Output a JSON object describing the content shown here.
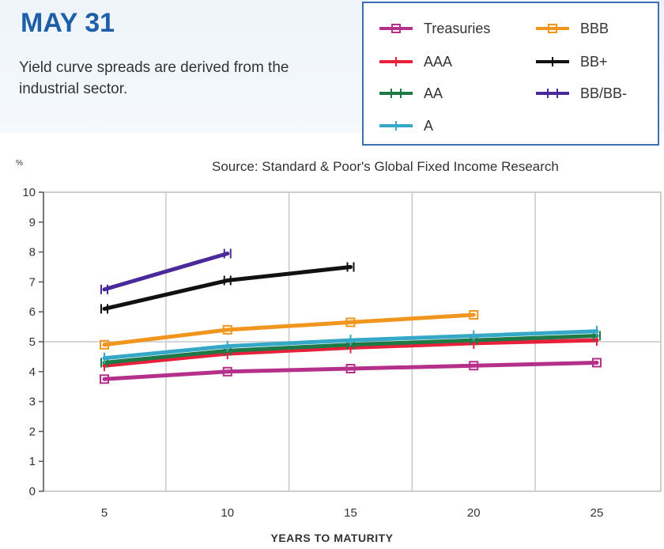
{
  "header": {
    "title": "MAY 31",
    "subtitle": "Yield curve spreads are derived from the industrial sector.",
    "source": "Source: Standard & Poor's Global Fixed Income Research"
  },
  "colors": {
    "Treasuries": "#b5308a",
    "AAA": "#e8203c",
    "AA": "#1e7a44",
    "A": "#35a8c8",
    "BBB": "#f0961e",
    "BB+": "#111111",
    "BB/BB-": "#4a2a9a"
  },
  "chart_data": {
    "type": "line",
    "title": "",
    "ylabel": "%",
    "xlabel": "YEARS TO MATURITY",
    "x_ticks": [
      5,
      10,
      15,
      20,
      25
    ],
    "y_ticks": [
      0,
      1,
      2,
      3,
      4,
      5,
      6,
      7,
      8,
      9,
      10
    ],
    "ylim": [
      0,
      10
    ],
    "xlim": [
      5,
      25
    ],
    "grid": true,
    "legend_position": "top-right",
    "series": [
      {
        "name": "Treasuries",
        "x": [
          5,
          10,
          15,
          20,
          25
        ],
        "values": [
          3.75,
          4.0,
          4.1,
          4.2,
          4.3
        ],
        "marker": "square"
      },
      {
        "name": "AAA",
        "x": [
          5,
          10,
          15,
          20,
          25
        ],
        "values": [
          4.2,
          4.6,
          4.8,
          4.95,
          5.05
        ],
        "marker": "tick"
      },
      {
        "name": "AA",
        "x": [
          5,
          10,
          15,
          20,
          25
        ],
        "values": [
          4.3,
          4.7,
          4.9,
          5.05,
          5.2
        ],
        "marker": "plus"
      },
      {
        "name": "A",
        "x": [
          5,
          10,
          15,
          20,
          25
        ],
        "values": [
          4.45,
          4.85,
          5.05,
          5.2,
          5.35
        ],
        "marker": "tick"
      },
      {
        "name": "BBB",
        "x": [
          5,
          10,
          15,
          20
        ],
        "values": [
          4.9,
          5.4,
          5.65,
          5.9
        ],
        "marker": "square"
      },
      {
        "name": "BB+",
        "x": [
          5,
          10,
          15
        ],
        "values": [
          6.1,
          7.05,
          7.5
        ],
        "marker": "plus"
      },
      {
        "name": "BB/BB-",
        "x": [
          5,
          10
        ],
        "values": [
          6.75,
          7.95
        ],
        "marker": "plus"
      }
    ]
  }
}
